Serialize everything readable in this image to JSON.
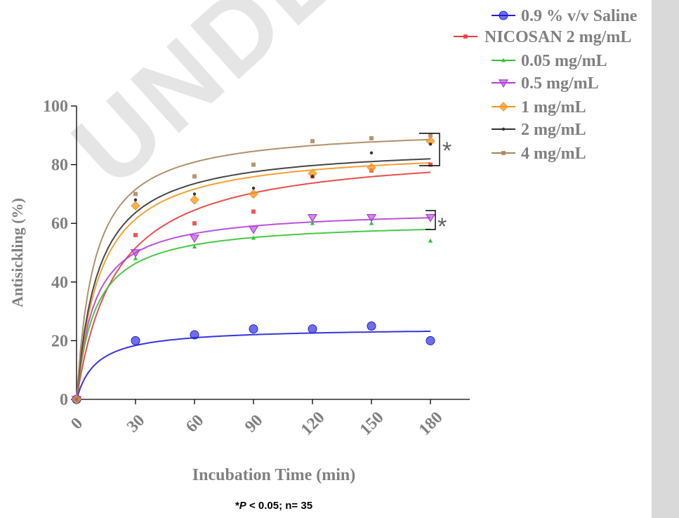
{
  "footnote": {
    "marker": "*",
    "p": "P",
    "rest": " < 0.05; n= 35"
  },
  "watermark_text": "UNDER PEER REVIEW",
  "significance_marks": [
    "*",
    "*"
  ],
  "chart_data": {
    "type": "line",
    "xlabel": "Incubation Time (min)",
    "ylabel": "Antisickling (%)",
    "xlim": [
      0,
      200
    ],
    "ylim": [
      0,
      100
    ],
    "xticks": [
      0,
      30,
      60,
      90,
      120,
      150,
      180
    ],
    "yticks": [
      0,
      20,
      40,
      60,
      80,
      100
    ],
    "x": [
      0,
      30,
      60,
      90,
      120,
      150,
      180
    ],
    "grid": false,
    "legend_position": "top-right",
    "series": [
      {
        "name": "0.9 % v/v Saline",
        "color": "#2020d8",
        "marker": "circle",
        "values": [
          0,
          20,
          22,
          24,
          24,
          25,
          20
        ],
        "fit": {
          "max": 24.5,
          "k": 10
        }
      },
      {
        "name": "NICOSAN 2 mg/mL",
        "color": "#e83a3a",
        "marker": "square",
        "values": [
          0,
          56,
          60,
          64,
          76,
          78,
          80
        ],
        "fit": {
          "max": 86,
          "k": 20
        }
      },
      {
        "name": "0.05 mg/mL",
        "color": "#33c433",
        "marker": "triangle-up",
        "values": [
          0,
          48,
          52,
          55,
          60,
          60,
          54
        ],
        "fit": {
          "max": 61,
          "k": 9.5
        }
      },
      {
        "name": "0.5 mg/mL",
        "color": "#b040d8",
        "marker": "triangle-down",
        "values": [
          0,
          50,
          55,
          58,
          62,
          62,
          62
        ],
        "fit": {
          "max": 65,
          "k": 9
        }
      },
      {
        "name": "1 mg/mL",
        "color": "#f5961e",
        "marker": "diamond",
        "values": [
          0,
          66,
          68,
          70,
          77,
          79,
          88
        ],
        "fit": {
          "max": 86,
          "k": 12
        }
      },
      {
        "name": "2 mg/mL",
        "color": "#333333",
        "marker": "dot",
        "values": [
          0,
          68,
          70,
          72,
          76,
          84,
          87
        ],
        "fit": {
          "max": 87,
          "k": 11
        }
      },
      {
        "name": "4 mg/mL",
        "color": "#a8845c",
        "marker": "square",
        "values": [
          0,
          70,
          76,
          80,
          88,
          89,
          90
        ],
        "fit": {
          "max": 93,
          "k": 9
        }
      }
    ]
  }
}
